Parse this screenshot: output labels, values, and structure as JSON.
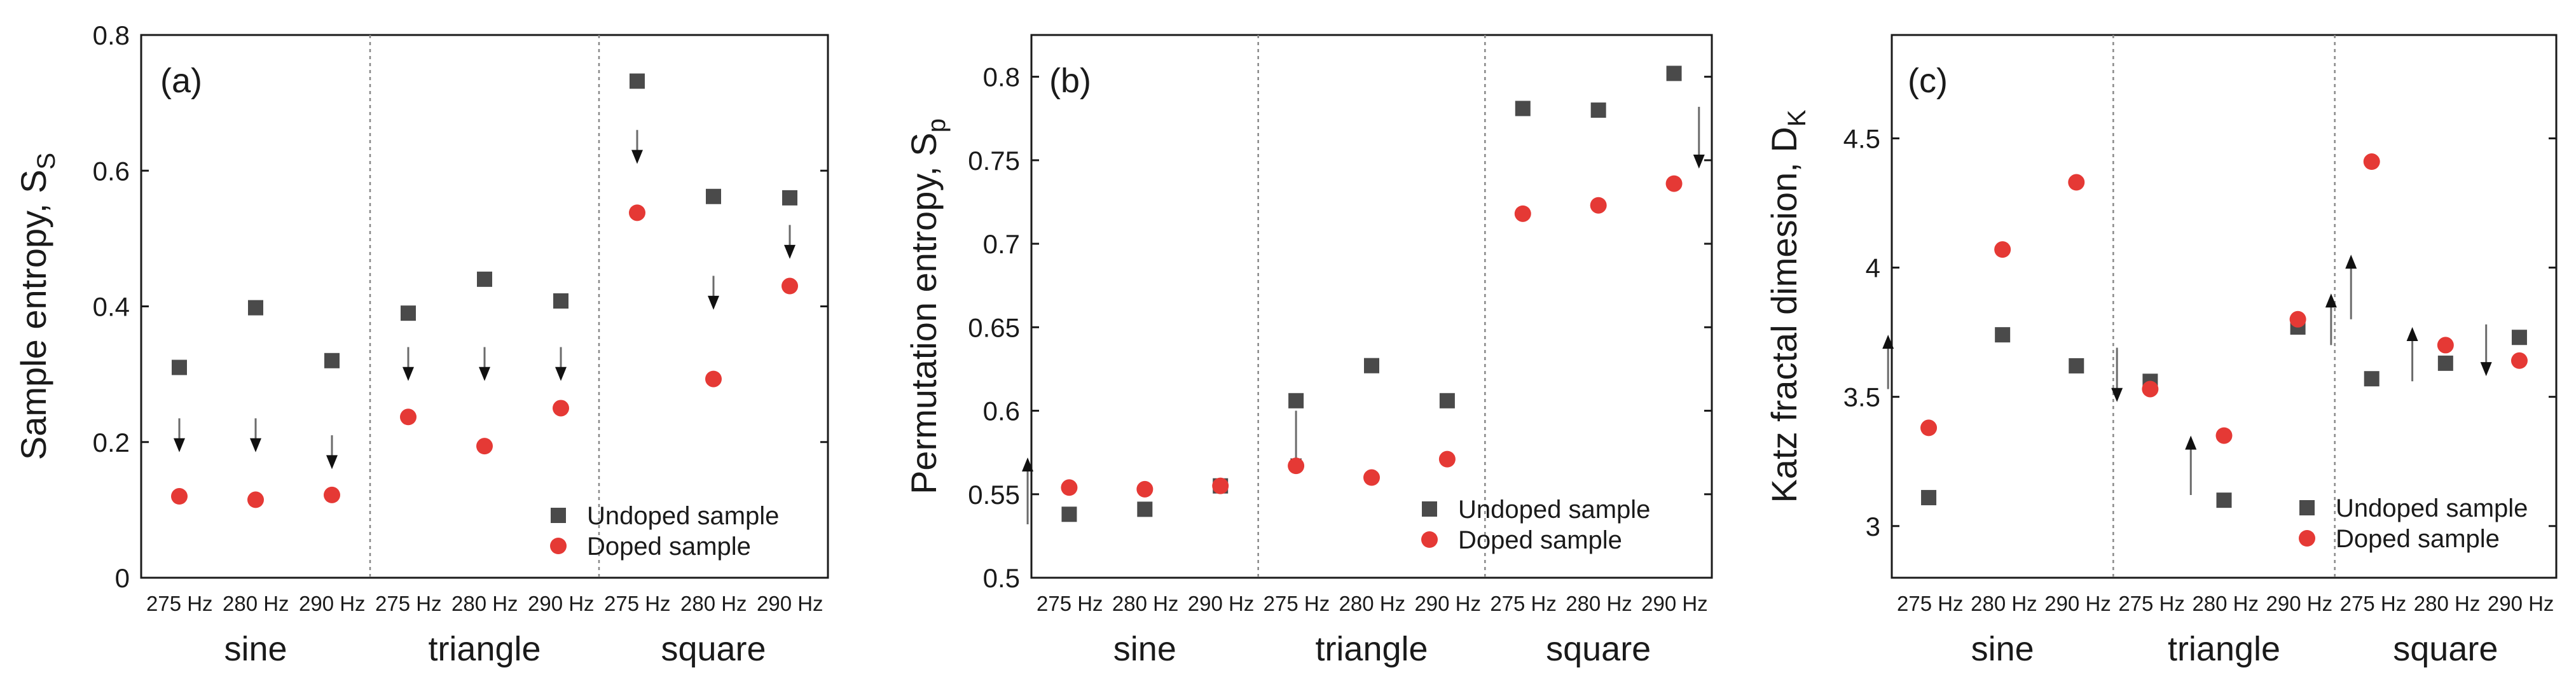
{
  "figure": {
    "background": "#ffffff"
  },
  "styles": {
    "undoped_color": "#4a4a4a",
    "doped_color": "#e53935",
    "axis_color": "#1a1a1a",
    "separator_color": "#888888"
  },
  "chart_data": [
    {
      "type": "scatter",
      "panel_label": "(a)",
      "ylabel": "Sample entropy, S",
      "ylabel_sub": "S",
      "ylim": [
        0,
        0.8
      ],
      "yticks": [
        0,
        0.2,
        0.4,
        0.6,
        0.8
      ],
      "ytick_labels": [
        "0",
        "0.2",
        "0.4",
        "0.6",
        "0.8"
      ],
      "categories": [
        "275 Hz",
        "280 Hz",
        "290 Hz",
        "275 Hz",
        "280 Hz",
        "290 Hz",
        "275 Hz",
        "280 Hz",
        "290 Hz"
      ],
      "groups": [
        "sine",
        "triangle",
        "square"
      ],
      "legend": {
        "position": "bottom-right",
        "entries": [
          "Undoped sample",
          "Doped sample"
        ]
      },
      "series": [
        {
          "name": "Undoped sample",
          "marker": "square",
          "values": [
            0.31,
            0.398,
            0.32,
            0.39,
            0.44,
            0.408,
            0.732,
            0.562,
            0.56
          ]
        },
        {
          "name": "Doped sample",
          "marker": "circle",
          "values": [
            0.12,
            0.115,
            0.122,
            0.237,
            0.194,
            0.25,
            0.538,
            0.293,
            0.43
          ]
        }
      ],
      "arrows": [
        {
          "index": 0,
          "from": 0.235,
          "to": 0.185
        },
        {
          "index": 1,
          "from": 0.235,
          "to": 0.185
        },
        {
          "index": 2,
          "from": 0.21,
          "to": 0.16
        },
        {
          "index": 3,
          "from": 0.34,
          "to": 0.29
        },
        {
          "index": 4,
          "from": 0.34,
          "to": 0.29
        },
        {
          "index": 5,
          "from": 0.34,
          "to": 0.29
        },
        {
          "index": 6,
          "from": 0.66,
          "to": 0.61
        },
        {
          "index": 7,
          "from": 0.445,
          "to": 0.395
        },
        {
          "index": 8,
          "from": 0.52,
          "to": 0.47
        }
      ]
    },
    {
      "type": "scatter",
      "panel_label": "(b)",
      "ylabel": "Permutation entropy, S",
      "ylabel_sub": "p",
      "ylim": [
        0.5,
        0.825
      ],
      "yticks": [
        0.5,
        0.55,
        0.6,
        0.65,
        0.7,
        0.75,
        0.8
      ],
      "ytick_labels": [
        "0.5",
        "0.55",
        "0.6",
        "0.65",
        "0.7",
        "0.75",
        "0.8"
      ],
      "categories": [
        "275 Hz",
        "280 Hz",
        "290 Hz",
        "275 Hz",
        "280 Hz",
        "290 Hz",
        "275 Hz",
        "280 Hz",
        "290 Hz"
      ],
      "groups": [
        "sine",
        "triangle",
        "square"
      ],
      "legend": {
        "position": "bottom-right",
        "entries": [
          "Undoped sample",
          "Doped sample"
        ]
      },
      "series": [
        {
          "name": "Undoped sample",
          "marker": "square",
          "values": [
            0.538,
            0.541,
            0.555,
            0.606,
            0.627,
            0.606,
            0.781,
            0.78,
            0.802
          ]
        },
        {
          "name": "Doped sample",
          "marker": "circle",
          "values": [
            0.554,
            0.553,
            0.555,
            0.567,
            0.56,
            0.571,
            0.718,
            0.723,
            0.736
          ]
        }
      ],
      "arrows": [
        {
          "index": -0.55,
          "from": 0.532,
          "to": 0.572
        },
        {
          "index": 3,
          "from": 0.6,
          "to": 0.563
        },
        {
          "index": 8.33,
          "from": 0.782,
          "to": 0.745
        }
      ]
    },
    {
      "type": "scatter",
      "panel_label": "(c)",
      "ylabel": "Katz fractal dimesion, D",
      "ylabel_sub": "K",
      "ylim": [
        2.8,
        4.9
      ],
      "yticks": [
        3,
        3.5,
        4,
        4.5
      ],
      "ytick_labels": [
        "3",
        "3.5",
        "4",
        "4.5"
      ],
      "categories": [
        "275 Hz",
        "280 Hz",
        "290 Hz",
        "275 Hz",
        "280 Hz",
        "290 Hz",
        "275 Hz",
        "280 Hz",
        "290 Hz"
      ],
      "groups": [
        "sine",
        "triangle",
        "square"
      ],
      "legend": {
        "position": "bottom-right",
        "entries": [
          "Undoped sample",
          "Doped sample"
        ]
      },
      "series": [
        {
          "name": "Undoped sample",
          "marker": "square",
          "values": [
            3.11,
            3.74,
            3.62,
            3.56,
            3.1,
            3.77,
            3.57,
            3.63,
            3.73
          ]
        },
        {
          "name": "Doped sample",
          "marker": "circle",
          "values": [
            3.38,
            4.07,
            4.33,
            3.53,
            3.35,
            3.8,
            4.41,
            3.7,
            3.64
          ]
        }
      ],
      "arrows": [
        {
          "index": -0.55,
          "from": 3.53,
          "to": 3.74
        },
        {
          "index": 2.55,
          "from": 3.69,
          "to": 3.48
        },
        {
          "index": 3.55,
          "from": 3.12,
          "to": 3.35
        },
        {
          "index": 5.45,
          "from": 3.7,
          "to": 3.9
        },
        {
          "index": 5.72,
          "from": 3.8,
          "to": 4.05
        },
        {
          "index": 6.55,
          "from": 3.56,
          "to": 3.77
        },
        {
          "index": 7.55,
          "from": 3.78,
          "to": 3.58
        }
      ]
    }
  ]
}
